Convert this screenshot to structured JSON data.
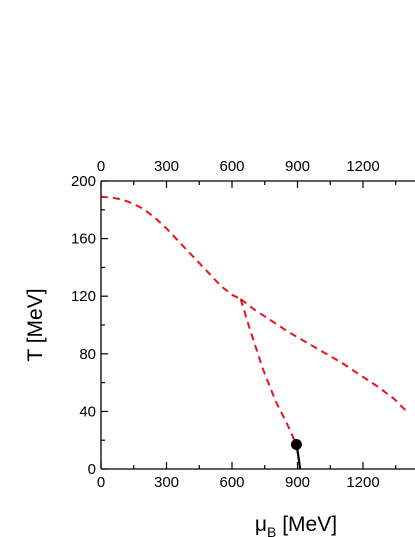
{
  "chart_data": {
    "type": "line",
    "title": "",
    "xlabel": "μB [MeV]",
    "xlabel_main": "μ",
    "xlabel_sub": "B",
    "xlabel_units": " [MeV]",
    "ylabel": "T [MeV]",
    "xlim": [
      0,
      1400
    ],
    "ylim": [
      0,
      200
    ],
    "x_ticks": [
      0,
      300,
      600,
      900,
      1200
    ],
    "x_tick_labels": [
      "0",
      "300",
      "600",
      "900",
      "1200"
    ],
    "x_edge_tick_label": "1",
    "y_ticks": [
      0,
      40,
      80,
      120,
      160,
      200
    ],
    "y_tick_labels": [
      "0",
      "40",
      "80",
      "120",
      "160",
      "200"
    ],
    "top_axis_ticks": true,
    "grid": false,
    "series": [
      {
        "style": "dashed",
        "color": "#e8141b",
        "x": [
          0,
          50,
          100,
          150,
          200,
          250,
          300,
          350,
          400,
          450,
          500,
          550,
          600,
          640
        ],
        "y": [
          189,
          188.5,
          187,
          184,
          180,
          174,
          167,
          159,
          151,
          143,
          135,
          127,
          121,
          118
        ]
      },
      {
        "style": "dashed",
        "color": "#e8141b",
        "x": [
          640,
          680,
          740,
          800,
          850,
          880,
          895
        ],
        "y": [
          118,
          98,
          70,
          47,
          32,
          22,
          17
        ]
      },
      {
        "style": "dashed",
        "color": "#e8141b",
        "x": [
          640,
          700,
          780,
          860,
          940,
          1020,
          1100,
          1180,
          1260,
          1340,
          1400
        ],
        "y": [
          118,
          111,
          103,
          95,
          88,
          81,
          74,
          66,
          58,
          49,
          40
        ]
      },
      {
        "style": "solid",
        "color": "#000000",
        "x": [
          895,
          902,
          908,
          912
        ],
        "y": [
          17,
          11,
          5,
          0
        ]
      }
    ],
    "critical_point": {
      "x": 895,
      "y": 17
    }
  }
}
